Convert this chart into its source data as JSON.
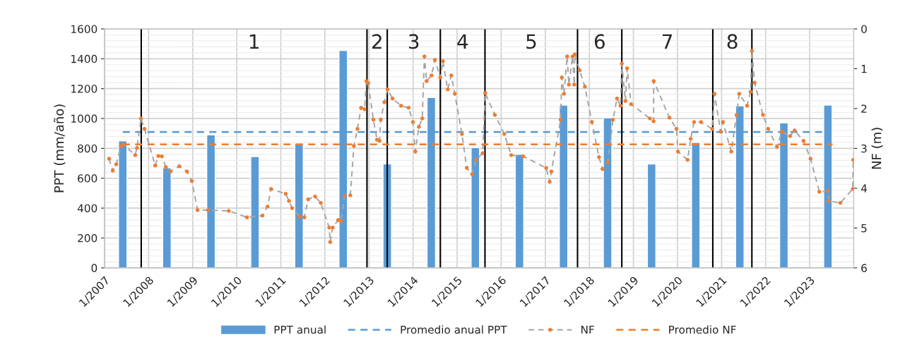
{
  "chart_data": {
    "type": "bar",
    "ylabel": "PPT (mm/año)",
    "y2label": "NF (m)",
    "xlim": [
      "2007-01-01",
      "2024-01-01"
    ],
    "xticks": [
      {
        "value": "2007-01-01",
        "label": "1/2007"
      },
      {
        "value": "2008-01-01",
        "label": "1/2008"
      },
      {
        "value": "2009-01-01",
        "label": "1/2009"
      },
      {
        "value": "2010-01-01",
        "label": "1/2010"
      },
      {
        "value": "2011-01-01",
        "label": "1/2011"
      },
      {
        "value": "2012-01-01",
        "label": "1/2012"
      },
      {
        "value": "2013-01-01",
        "label": "1/2013"
      },
      {
        "value": "2014-01-01",
        "label": "1/2014"
      },
      {
        "value": "2015-01-01",
        "label": "1/2015"
      },
      {
        "value": "2016-01-01",
        "label": "1/2016"
      },
      {
        "value": "2017-01-01",
        "label": "1/2017"
      },
      {
        "value": "2018-01-01",
        "label": "1/2018"
      },
      {
        "value": "2019-01-01",
        "label": "1/2019"
      },
      {
        "value": "2020-01-01",
        "label": "1/2020"
      },
      {
        "value": "2021-01-01",
        "label": "1/2021"
      },
      {
        "value": "2022-01-01",
        "label": "1/2022"
      },
      {
        "value": "2023-01-01",
        "label": "1/2023"
      }
    ],
    "ylim": [
      0,
      1600
    ],
    "yticks": [
      0,
      200,
      400,
      600,
      800,
      1000,
      1200,
      1400,
      1600
    ],
    "y2lim": [
      6,
      0
    ],
    "y2ticks": [
      0,
      1,
      2,
      3,
      4,
      5,
      6
    ],
    "grid": true,
    "legend": "bottom",
    "series": [
      {
        "name": "PPT anual",
        "color": "#5b9bd5",
        "x": [
          "2007-06-01",
          "2008-06-01",
          "2009-06-01",
          "2010-06-01",
          "2011-06-01",
          "2012-06-01",
          "2013-06-01",
          "2014-06-01",
          "2015-06-01",
          "2016-06-01",
          "2017-06-01",
          "2018-06-01",
          "2019-06-01",
          "2020-06-01",
          "2021-06-01",
          "2022-06-01",
          "2023-06-01"
        ],
        "values": [
          850,
          670,
          890,
          745,
          835,
          1455,
          695,
          1140,
          805,
          760,
          1090,
          1005,
          695,
          840,
          1085,
          970,
          1090
        ]
      },
      {
        "name": "Promedio anual PPT",
        "type": "line",
        "line_style": "dashed",
        "marker": "none",
        "color": "#5b9bd5",
        "x": [
          "2007-06-01",
          "2023-04-25"
        ],
        "values": [
          910,
          910
        ]
      },
      {
        "name": "NF",
        "type": "line",
        "axis": "y2",
        "line_style": "dashed",
        "marker": "circle",
        "color": "#ed7d31",
        "x": [
          "2007-02-08",
          "2007-03-10",
          "2007-04-08",
          "2007-05-18",
          "2007-06-05",
          "2007-09-12",
          "2007-09-27",
          "2007-10-30",
          "2007-11-28",
          "2008-02-25",
          "2008-03-22",
          "2008-04-20",
          "2008-05-23",
          "2008-07-01",
          "2008-09-12",
          "2008-11-14",
          "2008-12-24",
          "2009-02-10",
          "2009-05-08",
          "2009-10-27",
          "2010-03-26",
          "2010-08-01",
          "2010-09-13",
          "2010-10-12",
          "2011-02-10",
          "2011-03-10",
          "2011-04-05",
          "2011-06-05",
          "2011-07-15",
          "2011-08-15",
          "2011-10-12",
          "2011-11-28",
          "2012-02-06",
          "2012-02-14",
          "2012-03-06",
          "2012-04-20",
          "2012-05-15",
          "2012-06-13",
          "2012-07-30",
          "2012-08-29",
          "2012-09-27",
          "2012-10-27",
          "2012-11-25",
          "2012-12-10",
          "2012-12-25",
          "2013-02-06",
          "2013-03-08",
          "2013-03-29",
          "2013-04-08",
          "2013-05-08",
          "2013-06-03",
          "2013-07-15",
          "2013-09-23",
          "2013-11-25",
          "2013-12-31",
          "2014-01-20",
          "2014-02-18",
          "2014-03-18",
          "2014-04-05",
          "2014-04-23",
          "2014-06-03",
          "2014-07-01",
          "2014-08-15",
          "2014-09-05",
          "2014-10-15",
          "2014-11-14",
          "2014-12-13",
          "2015-02-10",
          "2015-03-22",
          "2015-05-05",
          "2015-06-07",
          "2015-08-01",
          "2015-08-22",
          "2015-11-10",
          "2016-01-27",
          "2016-03-25",
          "2016-07-01",
          "2017-01-08",
          "2017-02-06",
          "2017-02-20",
          "2017-05-08",
          "2017-05-18",
          "2017-06-05",
          "2017-07-01",
          "2017-07-15",
          "2017-08-15",
          "2017-08-29",
          "2017-09-02",
          "2017-10-12",
          "2017-11-25",
          "2018-01-22",
          "2018-03-22",
          "2018-04-20",
          "2018-06-03",
          "2018-07-15",
          "2018-08-18",
          "2018-09-16",
          "2018-09-27",
          "2018-10-27",
          "2018-11-10",
          "2018-12-13",
          "2019-05-18",
          "2019-06-17",
          "2019-06-18",
          "2019-10-27",
          "2019-12-24",
          "2020-01-05",
          "2020-03-25",
          "2020-04-20",
          "2020-05-18",
          "2020-07-15",
          "2020-10-15",
          "2020-11-03",
          "2020-12-24",
          "2021-01-12",
          "2021-03-22",
          "2021-05-05",
          "2021-05-27",
          "2021-07-31",
          "2021-08-29",
          "2021-09-09",
          "2021-10-01",
          "2021-12-10",
          "2022-01-22",
          "2022-04-05",
          "2022-05-15",
          "2022-07-22",
          "2022-08-29",
          "2022-11-10",
          "2023-01-08",
          "2023-03-22",
          "2023-06-03",
          "2023-06-07",
          "2023-09-12",
          "2023-12-24",
          "2023-12-28"
        ],
        "values": [
          3.26,
          3.56,
          3.4,
          2.94,
          2.9,
          3.17,
          2.99,
          2.25,
          2.51,
          3.43,
          3.19,
          3.2,
          3.47,
          3.58,
          3.45,
          3.58,
          3.82,
          4.55,
          4.55,
          4.57,
          4.73,
          4.69,
          4.46,
          4.02,
          4.14,
          4.32,
          4.5,
          4.71,
          4.73,
          4.28,
          4.21,
          4.37,
          4.99,
          5.35,
          4.99,
          4.8,
          4.82,
          4.19,
          4.18,
          2.94,
          2.51,
          1.98,
          2.02,
          1.31,
          1.36,
          2.28,
          2.78,
          2.81,
          2.28,
          1.84,
          1.52,
          1.75,
          1.93,
          1.98,
          2.34,
          3.08,
          2.46,
          2.25,
          0.69,
          1.31,
          1.17,
          0.78,
          1.22,
          0.81,
          1.52,
          1.17,
          1.63,
          2.64,
          3.49,
          3.65,
          3.29,
          3.12,
          1.61,
          2.16,
          2.64,
          3.17,
          3.2,
          3.49,
          3.84,
          3.58,
          2.28,
          1.22,
          1.63,
          0.69,
          1.4,
          0.69,
          1.4,
          0.64,
          1.04,
          1.45,
          2.34,
          3.22,
          3.52,
          3.35,
          2.28,
          1.75,
          1.93,
          0.87,
          1.81,
          0.99,
          1.89,
          2.25,
          2.32,
          1.31,
          2.23,
          2.51,
          3.08,
          3.29,
          2.76,
          2.34,
          2.34,
          2.51,
          1.63,
          2.58,
          2.34,
          3.08,
          2.16,
          1.63,
          1.93,
          1.58,
          0.55,
          1.35,
          2.16,
          2.51,
          2.96,
          2.58,
          2.69,
          2.55,
          2.81,
          3.26,
          4.09,
          4.07,
          4.32,
          4.37,
          4.02,
          3.29
        ]
      },
      {
        "name": "Promedio NF",
        "type": "line",
        "axis": "y2",
        "line_style": "dashed",
        "marker": "none",
        "color": "#ed7d31",
        "x": [
          "2007-06-01",
          "2023-07-10"
        ],
        "values": [
          2.9,
          2.9
        ]
      }
    ],
    "ref_lines": [
      {
        "axis": "x",
        "value": "2007-11-01",
        "color": "#000000"
      },
      {
        "axis": "x",
        "value": "2012-12-15",
        "color": "#000000"
      },
      {
        "axis": "x",
        "value": "2013-06-01",
        "color": "#000000"
      },
      {
        "axis": "x",
        "value": "2014-08-15",
        "color": "#000000"
      },
      {
        "axis": "x",
        "value": "2015-08-20",
        "color": "#000000"
      },
      {
        "axis": "x",
        "value": "2017-09-25",
        "color": "#000000"
      },
      {
        "axis": "x",
        "value": "2018-09-27",
        "color": "#000000"
      },
      {
        "axis": "x",
        "value": "2020-10-20",
        "color": "#000000"
      },
      {
        "axis": "x",
        "value": "2021-09-09",
        "color": "#000000"
      }
    ],
    "annotations": [
      "1",
      "2",
      "3",
      "4",
      "5",
      "6",
      "7",
      "8"
    ]
  }
}
